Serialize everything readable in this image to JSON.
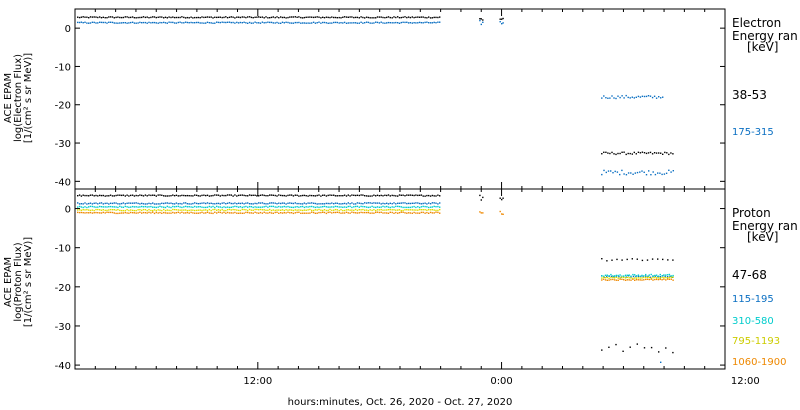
{
  "x_axis": {
    "label": "hours:minutes, Oct. 26, 2020 - Oct. 27, 2020",
    "range_hours": [
      3,
      35
    ],
    "ticks": [
      {
        "value": 12,
        "label": "12:00"
      },
      {
        "value": 24,
        "label": "0:00"
      },
      {
        "value": 36,
        "label": "12:00"
      }
    ]
  },
  "chart_data": [
    {
      "type": "scatter",
      "name": "electron",
      "ylabel_lines": [
        "ACE EPAM",
        "log(Electron Flux)",
        "[1/(cm² s sr MeV)]"
      ],
      "ylim": [
        -42,
        5
      ],
      "yticks": [
        0,
        -10,
        -20,
        -30,
        -40
      ],
      "legend_title": [
        "Electron",
        "Energy ran"
      ],
      "legend_units": "[keV]",
      "series": [
        {
          "name": "38-53",
          "color": "#000000",
          "segments": [
            {
              "x": [
                3.1,
                21.0
              ],
              "y": 3.0,
              "step": 0.09,
              "jitter": 0.15
            },
            {
              "x": [
                22.9,
                23.1
              ],
              "y": 2.5,
              "step": 0.07,
              "jitter": 0.6
            },
            {
              "x": [
                23.9,
                24.1
              ],
              "y": 2.6,
              "step": 0.07,
              "jitter": 0.6
            },
            {
              "x": [
                28.9,
                32.5
              ],
              "y": -32.5,
              "step": 0.1,
              "jitter": 0.3
            }
          ]
        },
        {
          "name": "175-315",
          "color": "#0a6fc2",
          "segments": [
            {
              "x": [
                3.1,
                21.0
              ],
              "y": 1.6,
              "step": 0.09,
              "jitter": 0.15
            },
            {
              "x": [
                22.9,
                23.1
              ],
              "y": 1.6,
              "step": 0.07,
              "jitter": 0.6
            },
            {
              "x": [
                23.9,
                24.1
              ],
              "y": 1.6,
              "step": 0.07,
              "jitter": 0.6
            },
            {
              "x": [
                28.9,
                32.0
              ],
              "y": -17.8,
              "step": 0.1,
              "jitter": 0.4
            },
            {
              "x": [
                28.9,
                32.5
              ],
              "y": -37.5,
              "step": 0.11,
              "jitter": 0.6
            }
          ]
        }
      ]
    },
    {
      "type": "scatter",
      "name": "proton",
      "ylabel_lines": [
        "ACE EPAM",
        "log(Proton Flux)",
        "[1/(cm² s sr MeV)]"
      ],
      "ylim": [
        -41,
        5
      ],
      "yticks": [
        0,
        -10,
        -20,
        -30,
        -40
      ],
      "legend_title": [
        "Proton",
        "Energy ran"
      ],
      "legend_units": "[keV]",
      "series": [
        {
          "name": "47-68",
          "color": "#000000",
          "segments": [
            {
              "x": [
                3.1,
                21.0
              ],
              "y": 3.5,
              "step": 0.09,
              "jitter": 0.15
            },
            {
              "x": [
                22.9,
                23.1
              ],
              "y": 3.0,
              "step": 0.07,
              "jitter": 0.8
            },
            {
              "x": [
                23.9,
                24.1
              ],
              "y": 3.0,
              "step": 0.07,
              "jitter": 0.8
            },
            {
              "x": [
                28.9,
                32.5
              ],
              "y": -12.8,
              "step": 0.25,
              "jitter": 0.4
            },
            {
              "x": [
                28.9,
                32.5
              ],
              "y": -35.5,
              "step": 0.35,
              "jitter": 1.2
            }
          ]
        },
        {
          "name": "115-195",
          "color": "#0a6fc2",
          "segments": [
            {
              "x": [
                3.1,
                21.0
              ],
              "y": 1.5,
              "step": 0.09,
              "jitter": 0.15
            },
            {
              "x": [
                28.9,
                32.5
              ],
              "y": -17.2,
              "step": 0.12,
              "jitter": 0.2
            },
            {
              "x": [
                31.8,
                31.9
              ],
              "y": -39.0,
              "step": 0.1,
              "jitter": 0.2
            }
          ]
        },
        {
          "name": "310-580",
          "color": "#00cccc",
          "segments": [
            {
              "x": [
                3.1,
                21.0
              ],
              "y": 0.6,
              "step": 0.09,
              "jitter": 0.15
            },
            {
              "x": [
                28.9,
                32.5
              ],
              "y": -16.9,
              "step": 0.09,
              "jitter": 0.25
            }
          ]
        },
        {
          "name": "795-1193",
          "color": "#dddd00",
          "segments": [
            {
              "x": [
                3.1,
                21.0
              ],
              "y": -0.2,
              "step": 0.09,
              "jitter": 0.15
            },
            {
              "x": [
                28.9,
                32.5
              ],
              "y": -17.5,
              "step": 0.09,
              "jitter": 0.15
            }
          ]
        },
        {
          "name": "1060-1900",
          "color": "#ee8800",
          "segments": [
            {
              "x": [
                3.1,
                21.0
              ],
              "y": -0.9,
              "step": 0.09,
              "jitter": 0.15
            },
            {
              "x": [
                22.9,
                23.1
              ],
              "y": -0.9,
              "step": 0.07,
              "jitter": 0.5
            },
            {
              "x": [
                23.9,
                24.1
              ],
              "y": -0.9,
              "step": 0.07,
              "jitter": 0.5
            },
            {
              "x": [
                28.9,
                32.5
              ],
              "y": -18.0,
              "step": 0.09,
              "jitter": 0.15
            }
          ]
        }
      ]
    }
  ]
}
